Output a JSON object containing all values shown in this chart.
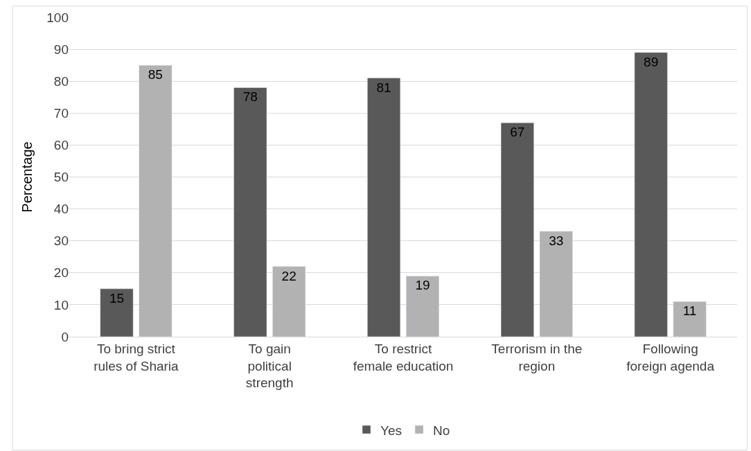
{
  "chart_data": {
    "type": "bar",
    "ylabel": "Percentage",
    "categories": [
      "To bring strict rules of Sharia",
      "To gain political strength",
      "To restrict female education",
      "Terrorism in the region",
      "Following foreign agenda"
    ],
    "series": [
      {
        "name": "Yes",
        "color": "#595959",
        "values": [
          15,
          78,
          81,
          67,
          89
        ]
      },
      {
        "name": "No",
        "color": "#b2b2b2",
        "values": [
          85,
          22,
          19,
          33,
          11
        ]
      }
    ],
    "ylim": [
      0,
      100
    ],
    "yticks": [
      0,
      10,
      20,
      30,
      40,
      50,
      60,
      70,
      80,
      90,
      100
    ],
    "grid": "y",
    "legend": "bottom",
    "data_labels": true
  }
}
